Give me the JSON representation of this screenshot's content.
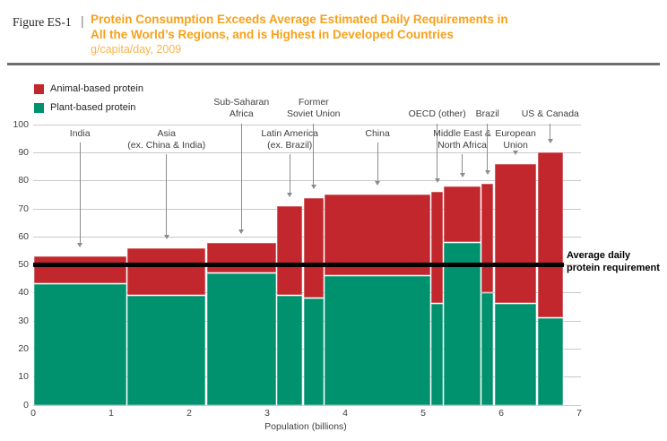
{
  "figure": {
    "label": "Figure ES-1",
    "separator": "|"
  },
  "header": {
    "title_line1": "Protein Consumption Exceeds Average Estimated Daily Requirements in",
    "title_line2": "All the World’s Regions, and is Highest in Developed Countries",
    "subtitle": "g/capita/day, 2009",
    "title_color": "#F7A11A",
    "subtitle_color": "#F9B44B"
  },
  "legend": [
    {
      "key": "animal",
      "label": "Animal-based protein",
      "color": "#C1272D"
    },
    {
      "key": "plant",
      "label": "Plant-based protein",
      "color": "#00916E"
    }
  ],
  "annotation": {
    "line1": "Average daily",
    "line2": "protein requirement"
  },
  "chart_data": {
    "type": "variable-width-stacked-bar",
    "title": "Protein Consumption Exceeds Average Estimated Daily Requirements in All the World’s Regions, and is Highest in Developed Countries",
    "subtitle": "g/capita/day, 2009",
    "xlabel": "Population (billions)",
    "ylabel": "g/capita/day",
    "xlim": [
      0,
      7
    ],
    "ylim": [
      0,
      100
    ],
    "xticks": [
      0,
      1,
      2,
      3,
      4,
      5,
      6,
      7
    ],
    "yticks": [
      0,
      10,
      20,
      30,
      40,
      50,
      60,
      70,
      80,
      90,
      100
    ],
    "grid": true,
    "series_colors": {
      "plant": "#00916E",
      "animal": "#C1272D"
    },
    "reference_line": {
      "value": 50,
      "label": "Average daily protein requirement",
      "color": "#000000"
    },
    "regions": [
      {
        "name": "India",
        "label_lines": [
          "India"
        ],
        "label_row": "lower",
        "population_bn": 1.2,
        "plant": 43,
        "animal": 10,
        "total": 53
      },
      {
        "name": "Asia (ex. China & India)",
        "label_lines": [
          "Asia",
          "(ex. China & India)"
        ],
        "label_row": "lower",
        "population_bn": 1.02,
        "plant": 39,
        "animal": 17,
        "total": 56
      },
      {
        "name": "Sub-Saharan Africa",
        "label_lines": [
          "Sub-Saharan",
          "Africa"
        ],
        "label_row": "upper",
        "population_bn": 0.9,
        "plant": 47,
        "animal": 11,
        "total": 58
      },
      {
        "name": "Latin America (ex. Brazil)",
        "label_lines": [
          "Latin America",
          "(ex. Brazil)"
        ],
        "label_row": "lower",
        "population_bn": 0.34,
        "plant": 39,
        "animal": 32,
        "total": 71
      },
      {
        "name": "Former Soviet Union",
        "label_lines": [
          "Former",
          "Soviet Union"
        ],
        "label_row": "upper",
        "population_bn": 0.27,
        "plant": 38,
        "animal": 36,
        "total": 74
      },
      {
        "name": "China",
        "label_lines": [
          "China"
        ],
        "label_row": "lower",
        "population_bn": 1.37,
        "plant": 46,
        "animal": 29,
        "total": 75
      },
      {
        "name": "OECD (other)",
        "label_lines": [
          "OECD (other)"
        ],
        "label_row": "upper",
        "population_bn": 0.16,
        "plant": 36,
        "animal": 40,
        "total": 76
      },
      {
        "name": "Middle East & North Africa",
        "label_lines": [
          "Middle East &",
          "North Africa"
        ],
        "label_row": "lower",
        "population_bn": 0.48,
        "plant": 58,
        "animal": 20,
        "total": 78
      },
      {
        "name": "Brazil",
        "label_lines": [
          "Brazil"
        ],
        "label_row": "upper",
        "population_bn": 0.17,
        "plant": 40,
        "animal": 39,
        "total": 79
      },
      {
        "name": "European Union",
        "label_lines": [
          "European",
          "Union"
        ],
        "label_row": "lower",
        "population_bn": 0.55,
        "plant": 36,
        "animal": 50,
        "total": 86
      },
      {
        "name": "US & Canada",
        "label_lines": [
          "US & Canada"
        ],
        "label_row": "upper",
        "population_bn": 0.34,
        "plant": 31,
        "animal": 59,
        "total": 90
      }
    ]
  }
}
